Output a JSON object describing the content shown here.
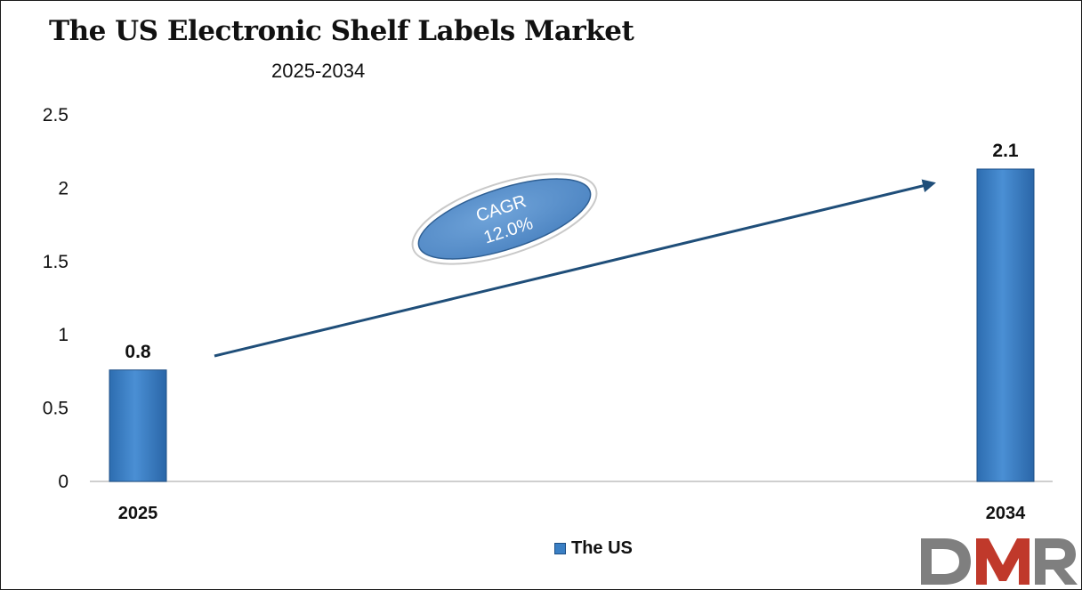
{
  "colors": {
    "bar": "#3a7fc4",
    "bar_edge": "#1d4f86",
    "arrow": "#1f4e79",
    "ellipse": "#5b93cf",
    "logo_gray": "#7f7f7f",
    "logo_red": "#c0392b"
  },
  "chart_data": {
    "type": "bar",
    "title": "The US Electronic Shelf Labels Market",
    "subtitle": "2025-2034",
    "categories": [
      "2025",
      "2034"
    ],
    "series": [
      {
        "name": "The US",
        "values": [
          0.76,
          2.13
        ],
        "labels": [
          "0.8",
          "2.1"
        ]
      }
    ],
    "ylim": [
      0,
      2.5
    ],
    "yticks": [
      0,
      0.5,
      1,
      1.5,
      2,
      2.5
    ],
    "ytick_labels": [
      "0",
      "0.5",
      "1",
      "1.5",
      "2",
      "2.5"
    ],
    "grid": false,
    "legend": "bottom-center",
    "annotation": {
      "line1": "CAGR",
      "line2": "12.0%"
    }
  },
  "logo": {
    "text": "DMR",
    "icon": "dmr-logo"
  }
}
